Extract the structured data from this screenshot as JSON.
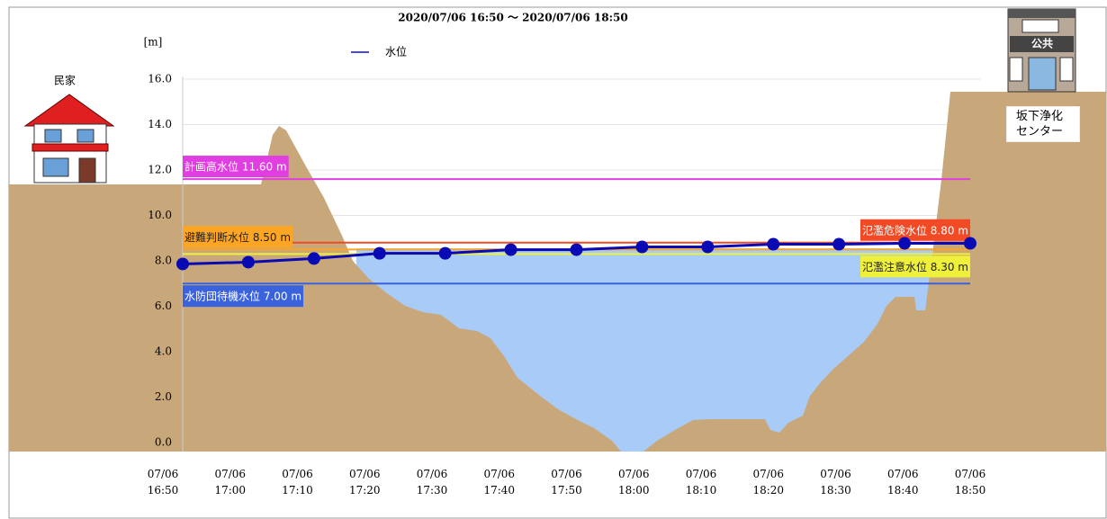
{
  "chart_data": {
    "type": "line",
    "title": "2020/07/06 16:50 〜 2020/07/06 18:50",
    "y_unit": "[m]",
    "categories": [
      "07/06 16:50",
      "07/06 17:00",
      "07/06 17:10",
      "07/06 17:20",
      "07/06 17:30",
      "07/06 17:40",
      "07/06 17:50",
      "07/06 18:00",
      "07/06 18:10",
      "07/06 18:20",
      "07/06 18:30",
      "07/06 18:40",
      "07/06 18:50"
    ],
    "series": [
      {
        "name": "水位",
        "color": "#0a0ab4",
        "values": [
          7.86,
          7.94,
          8.1,
          8.33,
          8.33,
          8.49,
          8.49,
          8.61,
          8.61,
          8.73,
          8.73,
          8.77,
          8.77
        ]
      }
    ],
    "ylim": [
      -0.4,
      16
    ],
    "yticks": [
      {
        "value": 0,
        "label": "0.0"
      },
      {
        "value": 2,
        "label": "2.0"
      },
      {
        "value": 4,
        "label": "4.0"
      },
      {
        "value": 6,
        "label": "6.0"
      },
      {
        "value": 8,
        "label": "8.0"
      },
      {
        "value": 10,
        "label": "10.0"
      },
      {
        "value": 12,
        "label": "12.0"
      },
      {
        "value": 14,
        "label": "14.0"
      },
      {
        "value": 16,
        "label": "16.0"
      }
    ],
    "grid": true,
    "reference_lines": [
      {
        "label": "計画高水位 11.60 m",
        "value": 11.6,
        "color": "#e03ee0",
        "text_color": "#ffffff"
      },
      {
        "label": "氾濫危険水位 8.80 m",
        "value": 8.8,
        "color": "#f24a24",
        "text_color": "#ffffff"
      },
      {
        "label": "避難判断水位 8.50 m",
        "value": 8.5,
        "color": "#ffa524",
        "text_color": "#222222"
      },
      {
        "label": "氾濫注意水位 8.30 m",
        "value": 8.3,
        "color": "#eef03a",
        "text_color": "#222222"
      },
      {
        "label": "水防団待機水位 7.00 m",
        "value": 7.0,
        "color": "#3a62dc",
        "text_color": "#ffffff"
      }
    ],
    "annotations": {
      "house": "民家",
      "facility": "坂下浄化センター",
      "facility_sign": "公共"
    }
  }
}
